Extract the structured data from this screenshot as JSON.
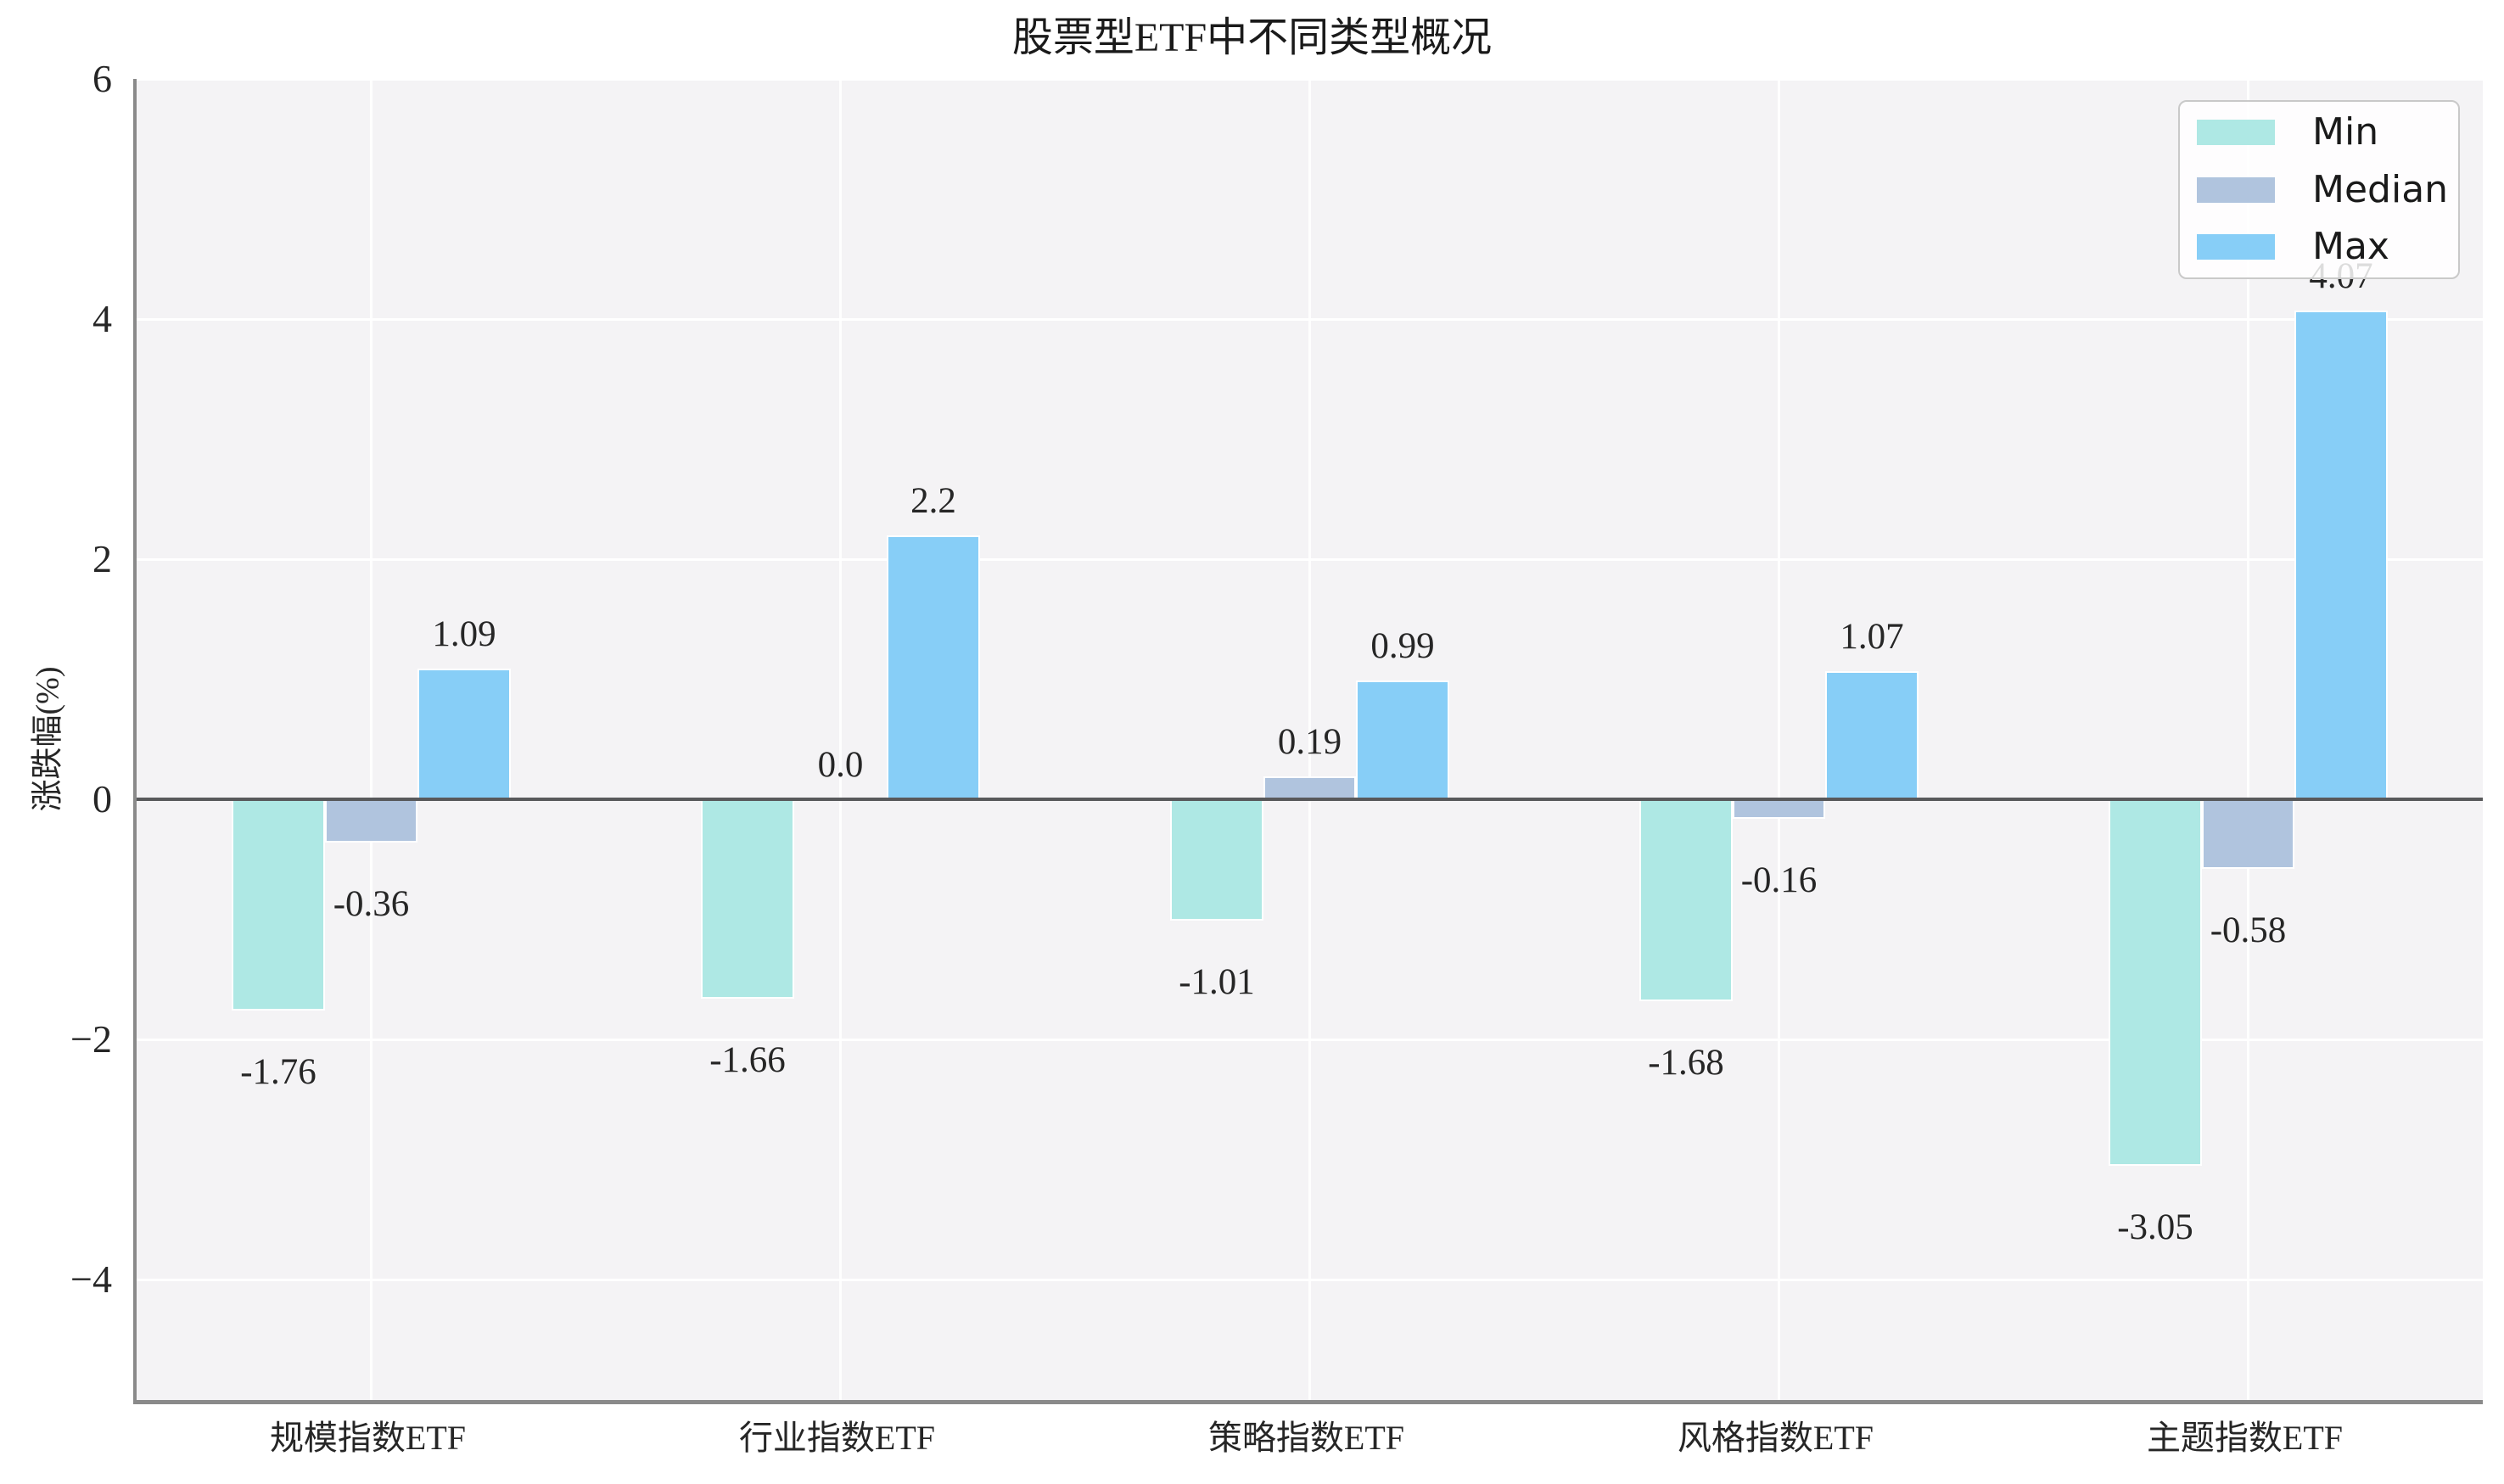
{
  "figure": {
    "title": "股票型ETF中不同类型概况"
  },
  "chart_data": {
    "type": "bar",
    "title": "股票型ETF中不同类型概况",
    "ylabel": "涨跌幅(%)",
    "xlabel": "",
    "categories": [
      "规模指数ETF",
      "行业指数ETF",
      "策略指数ETF",
      "风格指数ETF",
      "主题指数ETF"
    ],
    "series": [
      {
        "name": "Min",
        "color": "#aee8e4",
        "values": [
          -1.76,
          -1.66,
          -1.01,
          -1.68,
          -3.05
        ],
        "labels": [
          "-1.76",
          "-1.66",
          "-1.01",
          "-1.68",
          "-3.05"
        ]
      },
      {
        "name": "Median",
        "color": "#b0c4de",
        "values": [
          -0.36,
          0.0,
          0.19,
          -0.16,
          -0.58
        ],
        "labels": [
          "-0.36",
          "0.0",
          "0.19",
          "-0.16",
          "-0.58"
        ]
      },
      {
        "name": "Max",
        "color": "#87cef7",
        "values": [
          1.09,
          2.2,
          0.99,
          1.07,
          4.07
        ],
        "labels": [
          "1.09",
          "2.2",
          "0.99",
          "1.07",
          "4.07"
        ]
      }
    ],
    "ylim": [
      -5,
      6
    ],
    "yticks": [
      6,
      4,
      2,
      0,
      -2,
      -4
    ],
    "ytick_labels": [
      "6",
      "4",
      "2",
      "0",
      "−2",
      "−4"
    ],
    "grid": true,
    "legend": {
      "position": "upper right",
      "labels": [
        "Min",
        "Median",
        "Max"
      ]
    }
  },
  "colors": {
    "plot_background": "#f4f3f5",
    "grid_line": "#ffffff",
    "zero_line": "#58595b",
    "spine": "#8a8a8a",
    "text": "#262626",
    "legend_border": "#c9c9c9",
    "legend_background": "rgba(255,255,255,0.84)"
  }
}
